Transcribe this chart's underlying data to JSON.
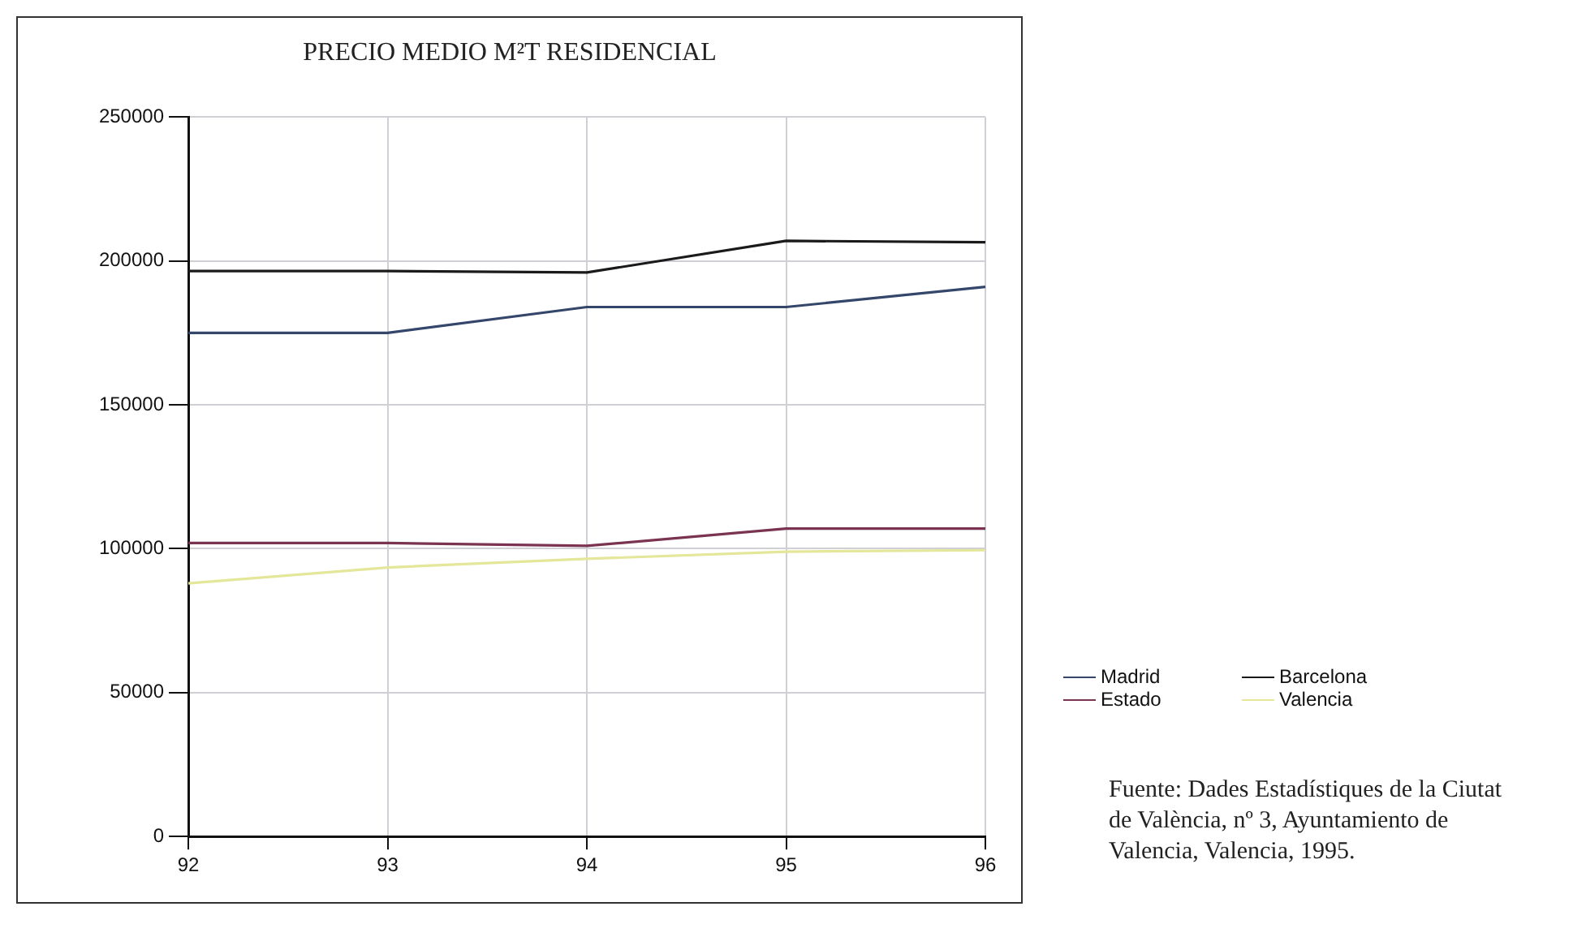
{
  "chart_data": {
    "type": "line",
    "title": "PRECIO MEDIO M²T RESIDENCIAL",
    "x": [
      92,
      93,
      94,
      95,
      96
    ],
    "xlim": [
      92,
      96
    ],
    "xticks": [
      92,
      93,
      94,
      95,
      96
    ],
    "ylim": [
      0,
      250000
    ],
    "yticks": [
      0,
      50000,
      100000,
      150000,
      200000,
      250000
    ],
    "series": [
      {
        "name": "Madrid",
        "color": "#34466a",
        "values": [
          175000,
          175000,
          184000,
          184000,
          191000
        ]
      },
      {
        "name": "Barcelona",
        "color": "#1a1a1a",
        "values": [
          196500,
          196500,
          196000,
          207000,
          206500
        ]
      },
      {
        "name": "Estado",
        "color": "#7a3350",
        "values": [
          102000,
          102000,
          101000,
          107000,
          107000
        ]
      },
      {
        "name": "Valencia",
        "color": "#e4e69a",
        "values": [
          88000,
          93500,
          96500,
          99000,
          99500
        ]
      }
    ],
    "grid": true,
    "legend": "right",
    "marker": "none",
    "line_style": "solid",
    "annotations": [
      "Fuente: Dades Estadístiques de la Ciutat de València, nº 3, Ayuntamiento de Valencia, Valencia, 1995."
    ]
  }
}
